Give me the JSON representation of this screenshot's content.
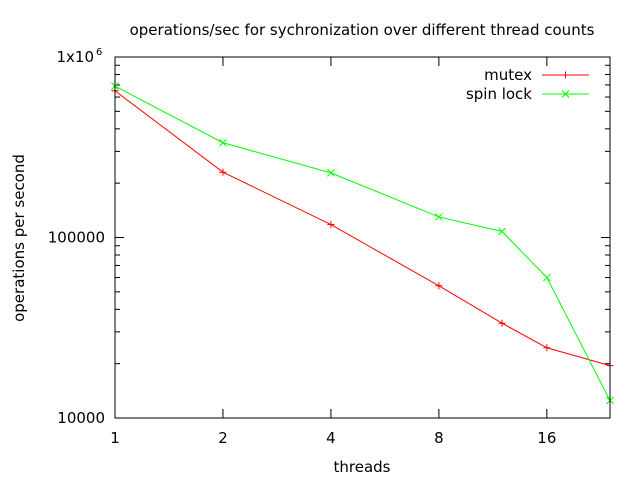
{
  "chart_data": {
    "type": "line",
    "title": "operations/sec for sychronization over different thread counts",
    "xlabel": "threads",
    "ylabel": "operations per second",
    "x_scale": "log2",
    "y_scale": "log10",
    "xlim": [
      1,
      24
    ],
    "ylim": [
      10000,
      1000000
    ],
    "x_ticks": [
      {
        "value": 1,
        "label": "1"
      },
      {
        "value": 2,
        "label": "2"
      },
      {
        "value": 4,
        "label": "4"
      },
      {
        "value": 8,
        "label": "8"
      },
      {
        "value": 16,
        "label": "16"
      }
    ],
    "y_ticks": [
      {
        "value": 10000,
        "label": "10000"
      },
      {
        "value": 100000,
        "label": "100000"
      },
      {
        "value": 1000000,
        "label": "1x10",
        "sup": "6"
      }
    ],
    "legend_position": "top-right",
    "grid": false,
    "x": [
      1,
      2,
      4,
      8,
      12,
      16,
      24
    ],
    "series": [
      {
        "name": "mutex",
        "color": "#ff0000",
        "marker": "plus",
        "values": [
          650000,
          230000,
          118000,
          54000,
          33500,
          24500,
          19500
        ]
      },
      {
        "name": "spin lock",
        "color": "#00ff00",
        "marker": "cross",
        "values": [
          690000,
          335000,
          228000,
          130000,
          108000,
          60000,
          12500
        ]
      }
    ]
  }
}
